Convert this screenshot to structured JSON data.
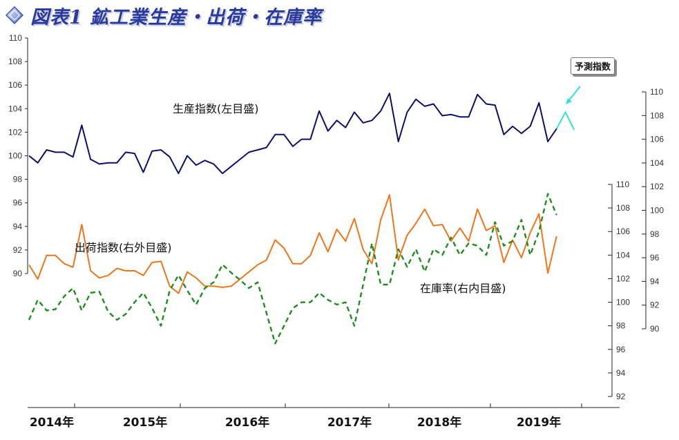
{
  "title": "図表1 鉱工業生産・出荷・在庫率",
  "callout": "予測指数",
  "colors": {
    "production": "#0c0c6e",
    "shipments": "#f07418",
    "inventory": "#1e8c1e",
    "forecast": "#30e0e0",
    "title": "#2a3a9a"
  },
  "chart_data": {
    "type": "line",
    "x_labels": [
      "2014年",
      "2015年",
      "2016年",
      "2017年",
      "2018年",
      "2019年"
    ],
    "x_start": "2014-01",
    "axes": {
      "left_outer": {
        "range": [
          90,
          110
        ],
        "ticks": [
          90,
          92,
          94,
          96,
          98,
          100,
          102,
          104,
          106,
          108,
          110
        ]
      },
      "right_outer": {
        "range": [
          90,
          110
        ],
        "ticks": [
          90,
          92,
          94,
          96,
          98,
          100,
          102,
          104,
          106,
          108,
          110
        ]
      },
      "right_inner": {
        "range": [
          92,
          110
        ],
        "ticks": [
          92,
          94,
          96,
          98,
          100,
          102,
          104,
          106,
          108,
          110
        ]
      }
    },
    "series": [
      {
        "name": "生産指数(左目盛)",
        "axis": "left_outer",
        "style": "solid",
        "values": [
          100.0,
          99.4,
          100.5,
          100.3,
          100.3,
          99.9,
          102.6,
          99.7,
          99.3,
          99.4,
          99.4,
          100.3,
          100.2,
          98.6,
          100.4,
          100.5,
          99.9,
          98.5,
          100.0,
          99.2,
          99.6,
          99.3,
          98.5,
          99.1,
          99.7,
          100.3,
          100.5,
          100.7,
          101.8,
          101.8,
          100.8,
          101.4,
          101.4,
          103.8,
          102.1,
          103.0,
          102.4,
          103.7,
          102.8,
          103.0,
          103.8,
          105.3,
          101.2,
          103.7,
          104.8,
          104.2,
          104.4,
          103.4,
          103.5,
          103.3,
          103.3,
          105.2,
          104.4,
          104.3,
          101.8,
          102.5,
          101.9,
          102.5,
          104.5,
          101.2,
          102.3
        ],
        "forecast": [
          102.3,
          103.7,
          102.2
        ]
      },
      {
        "name": "出荷指数(右外目盛)",
        "axis": "right_outer",
        "style": "solid",
        "values": [
          95.4,
          94.2,
          96.2,
          96.2,
          95.5,
          95.2,
          98.8,
          94.9,
          94.3,
          94.5,
          95.1,
          94.9,
          94.9,
          94.5,
          95.6,
          95.7,
          93.6,
          93.0,
          94.8,
          94.3,
          93.6,
          93.6,
          93.5,
          93.6,
          94.2,
          94.8,
          95.4,
          95.8,
          97.5,
          96.8,
          95.5,
          95.5,
          96.2,
          98.1,
          96.5,
          98.4,
          97.4,
          99.3,
          96.7,
          95.5,
          99.2,
          101.3,
          95.8,
          97.9,
          98.9,
          100.1,
          98.7,
          98.8,
          97.4,
          98.5,
          97.4,
          100.1,
          98.3,
          98.7,
          95.6,
          97.5,
          96.0,
          98.1,
          99.7,
          94.7,
          97.8
        ]
      },
      {
        "name": "在庫率(右内目盛)",
        "axis": "right_inner",
        "style": "dashed",
        "values": [
          98.5,
          100.2,
          99.3,
          99.4,
          100.5,
          101.2,
          99.3,
          100.8,
          100.9,
          99.2,
          98.5,
          99.0,
          100.0,
          100.8,
          99.5,
          98.0,
          101.0,
          102.3,
          101.0,
          99.8,
          101.2,
          101.7,
          103.2,
          102.5,
          101.9,
          101.2,
          101.7,
          99.1,
          96.5,
          98.0,
          99.5,
          100.0,
          100.0,
          100.8,
          100.2,
          99.8,
          100.0,
          98.0,
          101.5,
          105.0,
          101.5,
          101.5,
          104.5,
          103.0,
          104.5,
          102.6,
          104.5,
          104.0,
          105.5,
          104.0,
          105.0,
          104.8,
          104.0,
          106.8,
          104.8,
          105.2,
          107.0,
          104.0,
          106.0,
          109.2,
          107.4
        ]
      }
    ],
    "annotations": [
      "生産指数(左目盛)",
      "出荷指数(右外目盛)",
      "在庫率(右内目盛)",
      "予測指数"
    ]
  }
}
